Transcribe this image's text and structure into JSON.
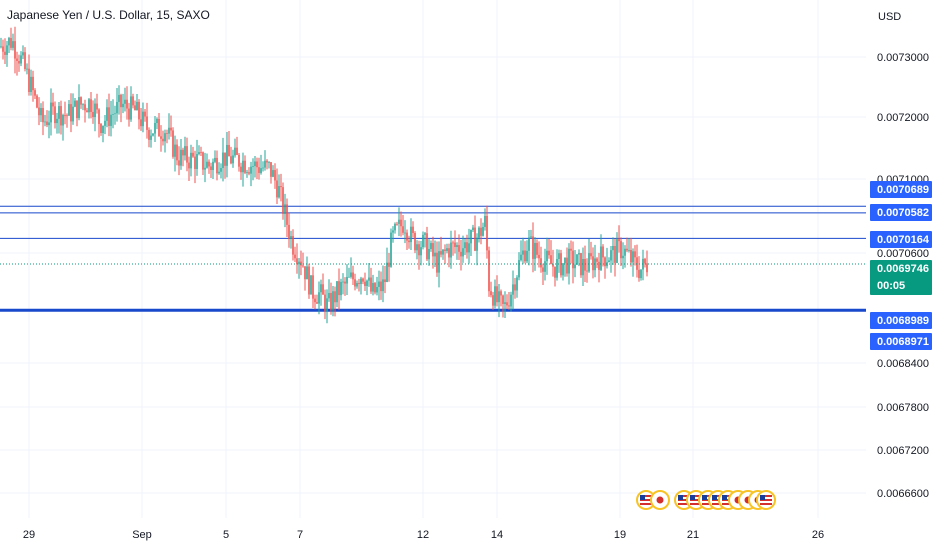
{
  "title": "Japanese Yen / U.S. Dollar, 15, SAXO",
  "currency": "USD",
  "colors": {
    "up": "#26a69a",
    "down": "#ef5350",
    "line": "#1848cc",
    "tag": "#2962ff",
    "current": "#089981",
    "grid": "#f0f3fa"
  },
  "chart_data": {
    "type": "candlestick",
    "title": "Japanese Yen / U.S. Dollar, 15, SAXO",
    "ylabel": "USD",
    "ylim": [
      0.00663,
      0.00735
    ],
    "y_ticks": [
      "0.0073000",
      "0.0072000",
      "0.0071000",
      "0.0070600",
      "0.0068400",
      "0.0067800",
      "0.0067200",
      "0.0066600"
    ],
    "x_ticks": [
      "29",
      "Sep",
      "5",
      "7",
      "12",
      "14",
      "19",
      "21",
      "26"
    ],
    "path": [
      [
        0,
        0.00733
      ],
      [
        12,
        0.00734
      ],
      [
        22,
        0.007305
      ],
      [
        32,
        0.00726
      ],
      [
        42,
        0.007205
      ],
      [
        55,
        0.007225
      ],
      [
        68,
        0.007218
      ],
      [
        80,
        0.007235
      ],
      [
        92,
        0.00724
      ],
      [
        100,
        0.007205
      ],
      [
        112,
        0.00722
      ],
      [
        122,
        0.007235
      ],
      [
        135,
        0.007225
      ],
      [
        148,
        0.007195
      ],
      [
        165,
        0.007195
      ],
      [
        178,
        0.00715
      ],
      [
        195,
        0.007145
      ],
      [
        210,
        0.007135
      ],
      [
        222,
        0.00715
      ],
      [
        238,
        0.007145
      ],
      [
        255,
        0.007135
      ],
      [
        270,
        0.00713
      ],
      [
        278,
        0.0071
      ],
      [
        285,
        0.007055
      ],
      [
        292,
        0.00701
      ],
      [
        302,
        0.00698
      ],
      [
        312,
        0.00693
      ],
      [
        320,
        0.006925
      ],
      [
        328,
        0.006905
      ],
      [
        338,
        0.00693
      ],
      [
        352,
        0.00695
      ],
      [
        364,
        0.00696
      ],
      [
        372,
        0.006925
      ],
      [
        384,
        0.00694
      ],
      [
        392,
        0.007015
      ],
      [
        404,
        0.007045
      ],
      [
        412,
        0.007015
      ],
      [
        425,
        0.007005
      ],
      [
        438,
        0.006975
      ],
      [
        448,
        0.007
      ],
      [
        465,
        0.007005
      ],
      [
        478,
        0.00702
      ],
      [
        486,
        0.007045
      ],
      [
        488,
        0.006945
      ],
      [
        496,
        0.006915
      ],
      [
        504,
        0.0069
      ],
      [
        512,
        0.006935
      ],
      [
        520,
        0.00698
      ],
      [
        528,
        0.00701
      ],
      [
        540,
        0.006985
      ],
      [
        555,
        0.00697
      ],
      [
        570,
        0.00698
      ],
      [
        585,
        0.00697
      ],
      [
        598,
        0.006985
      ],
      [
        612,
        0.00699
      ],
      [
        622,
        0.007
      ],
      [
        632,
        0.00698
      ],
      [
        640,
        0.006965
      ],
      [
        647,
        0.0069746
      ]
    ],
    "horizontal_lines": [
      {
        "price": "0.0070689",
        "value": 0.0070689,
        "width": 1
      },
      {
        "price": "0.0070582",
        "value": 0.0070582,
        "width": 1
      },
      {
        "price": "0.0070164",
        "value": 0.0070164,
        "width": 1
      },
      {
        "price": "0.0068989",
        "value": 0.0068989,
        "width": 3
      },
      {
        "price": "0.0068971",
        "value": 0.0068971,
        "width": 0
      }
    ],
    "current_price": "0.0069746",
    "current_value": 0.0069746,
    "countdown": "00:05",
    "event_flags": [
      "us",
      "jp",
      "us",
      "us",
      "us",
      "us",
      "us",
      "jp",
      "jp",
      "jp",
      "us"
    ]
  }
}
